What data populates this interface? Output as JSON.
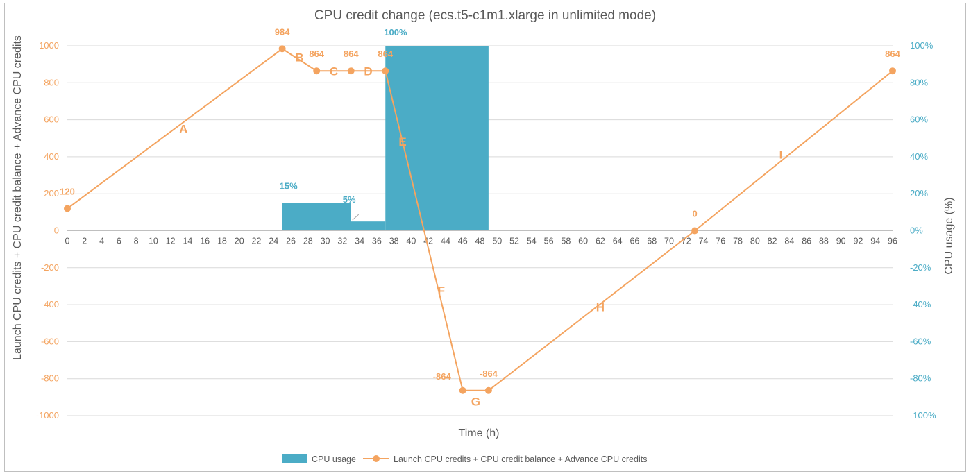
{
  "colors": {
    "line": "#f4a460",
    "bar": "#4bacc6",
    "grid": "#d9d9d9",
    "text": "#595959"
  },
  "chart_data": {
    "type": "bar+line",
    "title": "CPU credit change (ecs.t5-c1m1.xlarge in unlimited mode)",
    "xlabel": "Time (h)",
    "ylabel": "Launch CPU credits + CPU credit balance + Advance CPU credits",
    "y2label": "CPU usage (%)",
    "xlim": [
      0,
      96
    ],
    "x_ticks": [
      0,
      2,
      4,
      6,
      8,
      10,
      12,
      14,
      16,
      18,
      20,
      22,
      24,
      26,
      28,
      30,
      32,
      34,
      36,
      38,
      40,
      42,
      44,
      46,
      48,
      50,
      52,
      54,
      56,
      58,
      60,
      62,
      64,
      66,
      68,
      70,
      72,
      74,
      76,
      78,
      80,
      82,
      84,
      86,
      88,
      90,
      92,
      94,
      96
    ],
    "ylim": [
      -1000,
      1000
    ],
    "y_ticks": [
      -1000,
      -800,
      -600,
      -400,
      -200,
      0,
      200,
      400,
      600,
      800,
      1000
    ],
    "y2lim": [
      -100,
      100
    ],
    "y2_ticks": [
      "-100%",
      "-80%",
      "-60%",
      "-40%",
      "-20%",
      "0%",
      "20%",
      "40%",
      "60%",
      "80%",
      "100%"
    ],
    "grid": true,
    "legend_position": "bottom",
    "series": [
      {
        "name": "CPU usage",
        "kind": "bar",
        "axis": "right",
        "segments": [
          {
            "x_start": 25,
            "x_end": 33,
            "value": 15,
            "label": "15%"
          },
          {
            "x_start": 33,
            "x_end": 37,
            "value": 5,
            "label": "5%"
          },
          {
            "x_start": 37,
            "x_end": 49,
            "value": 100,
            "label": "100%"
          }
        ]
      },
      {
        "name": "Launch CPU credits + CPU credit balance + Advance CPU credits",
        "kind": "line",
        "axis": "left",
        "points": [
          {
            "x": 0,
            "y": 120,
            "label": "120"
          },
          {
            "x": 25,
            "y": 984,
            "label": "984"
          },
          {
            "x": 29,
            "y": 864,
            "label": "864"
          },
          {
            "x": 33,
            "y": 864,
            "label": "864"
          },
          {
            "x": 37,
            "y": 864,
            "label": "864"
          },
          {
            "x": 46,
            "y": -864,
            "label": "-864"
          },
          {
            "x": 49,
            "y": -864,
            "label": "-864"
          },
          {
            "x": 73,
            "y": 0,
            "label": "0"
          },
          {
            "x": 96,
            "y": 864,
            "label": "864"
          }
        ]
      }
    ],
    "segment_labels": [
      {
        "text": "A",
        "x": 13.5,
        "y": 530
      },
      {
        "text": "B",
        "x": 27,
        "y": 915
      },
      {
        "text": "C",
        "x": 31,
        "y": 840
      },
      {
        "text": "D",
        "x": 35,
        "y": 840
      },
      {
        "text": "E",
        "x": 39,
        "y": 460
      },
      {
        "text": "F",
        "x": 43.5,
        "y": -345
      },
      {
        "text": "G",
        "x": 47.5,
        "y": -945
      },
      {
        "text": "H",
        "x": 62,
        "y": -435
      },
      {
        "text": "I",
        "x": 83,
        "y": 390
      }
    ]
  }
}
